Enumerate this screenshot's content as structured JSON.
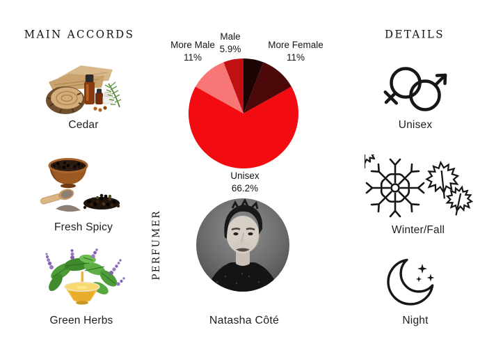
{
  "accords": {
    "header": "MAIN ACCORDS",
    "items": [
      {
        "label": "Cedar",
        "image": "cedar-wood-with-essential-oil-bottles"
      },
      {
        "label": "Fresh Spicy",
        "image": "black-peppercorns-bowl-and-scoop"
      },
      {
        "label": "Green Herbs",
        "image": "green-herbs-with-amber-oil-bowl"
      }
    ]
  },
  "perfumer": {
    "heading": "PERFUMER",
    "name": "Natasha Côté"
  },
  "details": {
    "header": "DETAILS",
    "items": [
      {
        "label": "Unisex",
        "icon": "unisex-gender-symbols-icon"
      },
      {
        "label": "Winter/Fall",
        "icon": "snowflake-and-maple-leaves-icon"
      },
      {
        "label": "Night",
        "icon": "crescent-moon-with-stars-icon"
      }
    ]
  },
  "chart_data": {
    "type": "pie",
    "title": "",
    "direction": "clockwise",
    "start_angle_deg": 0,
    "radius_px": 79,
    "slices": [
      {
        "label": "",
        "pct": "",
        "value": 5.9,
        "color": "#1e0405"
      },
      {
        "label": "More Female",
        "pct": "11%",
        "value": 11,
        "color": "#4d080a"
      },
      {
        "label": "Unisex",
        "pct": "66.2%",
        "value": 66.2,
        "color": "#f20b10"
      },
      {
        "label": "More Male",
        "pct": "11%",
        "value": 11,
        "color": "#f97676"
      },
      {
        "label": "Male",
        "pct": "5.9%",
        "value": 5.9,
        "color": "#c01014"
      }
    ]
  },
  "colors": {
    "background": "#ffffff",
    "text": "#1c1c1c",
    "icon_stroke": "#161616"
  }
}
